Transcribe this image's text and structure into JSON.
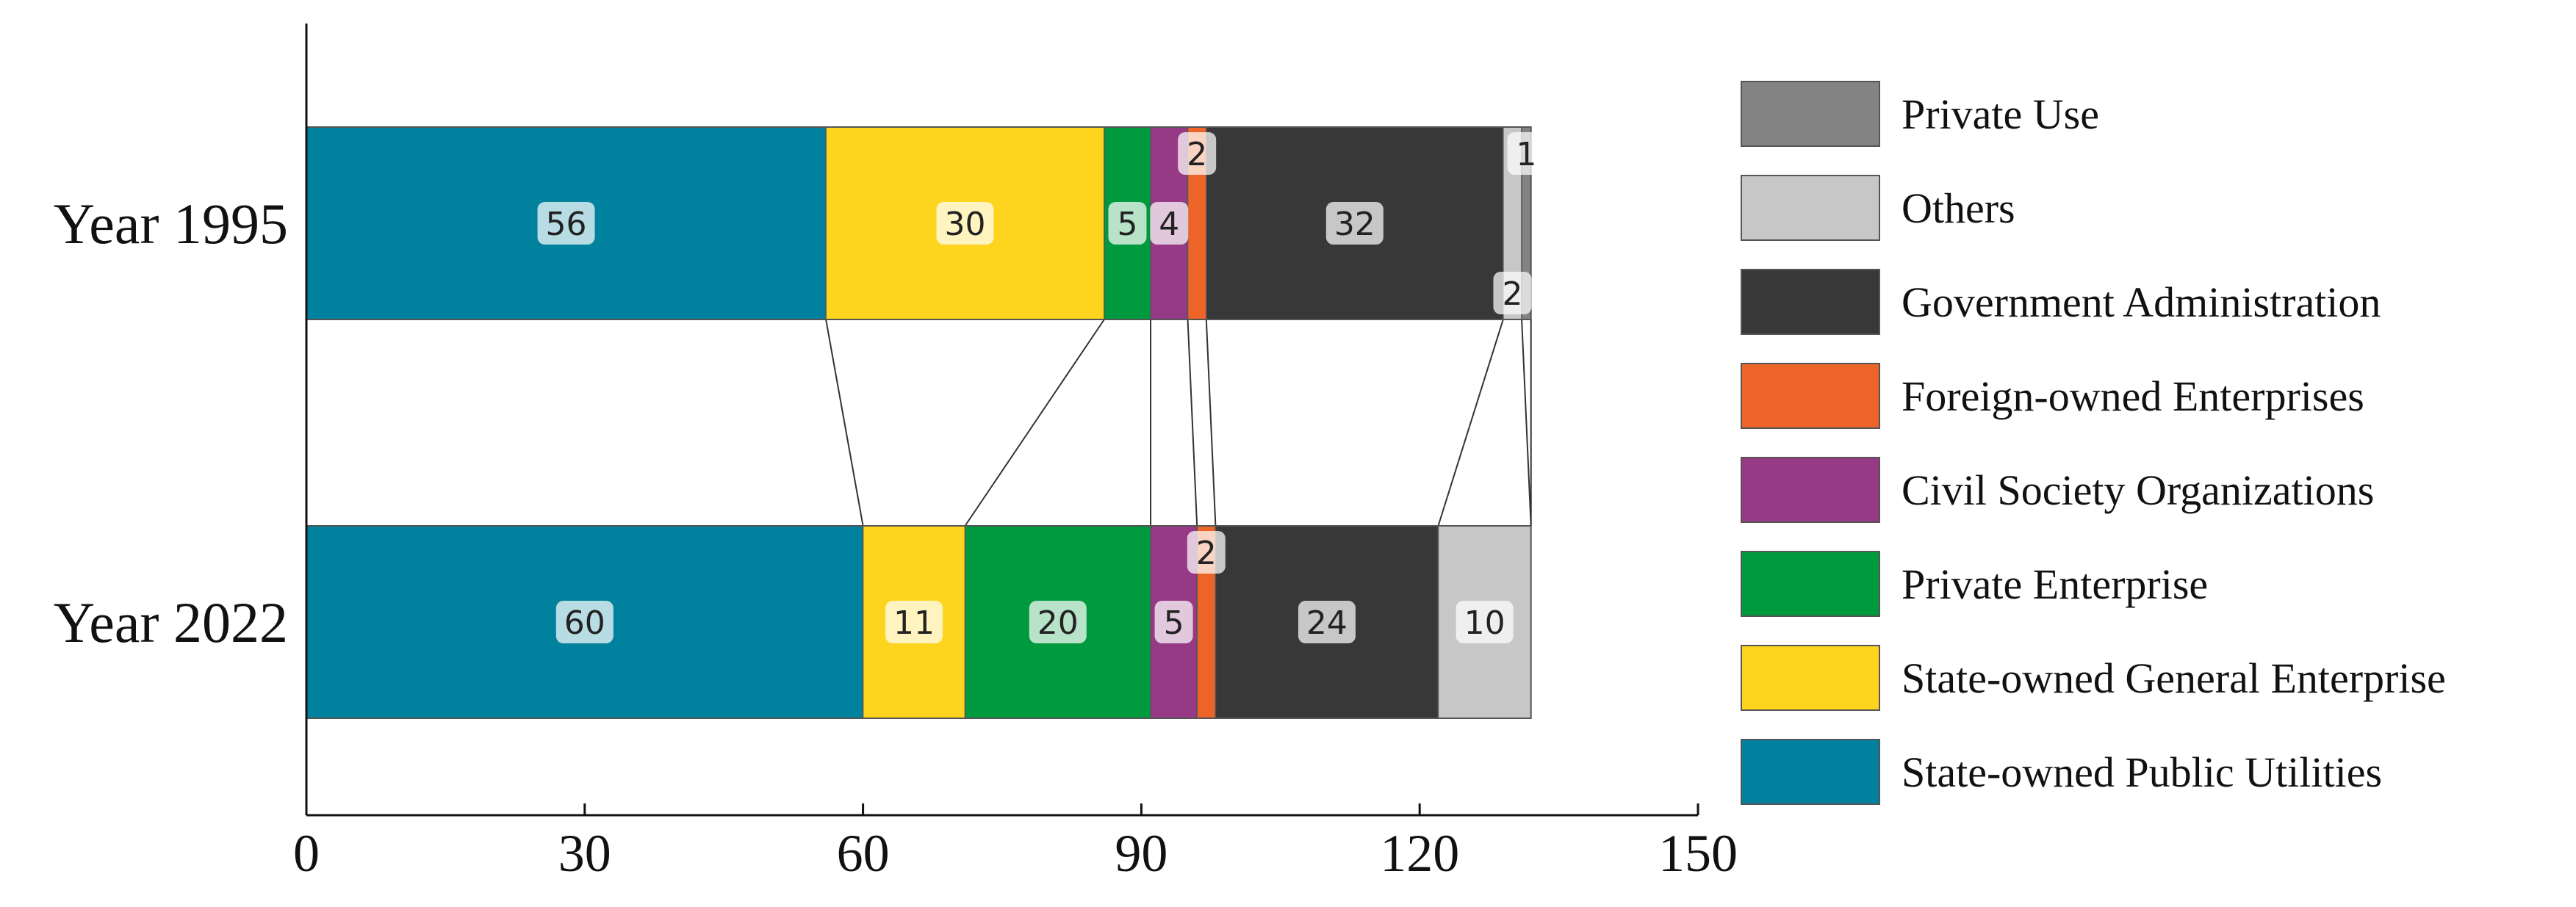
{
  "chart_data": {
    "type": "bar",
    "orientation": "horizontal",
    "stacked": true,
    "categories": [
      "Year 1995",
      "Year 2022"
    ],
    "series": [
      {
        "name": "State-owned Public Utilities",
        "values": [
          56,
          60
        ],
        "color": "#00829e"
      },
      {
        "name": "State-owned General Enterprise",
        "values": [
          30,
          11
        ],
        "color": "#fdd51f"
      },
      {
        "name": "Private Enterprise",
        "values": [
          5,
          20
        ],
        "color": "#009a3e"
      },
      {
        "name": "Civil Society Organizations",
        "values": [
          4,
          5
        ],
        "color": "#963a86"
      },
      {
        "name": "Foreign-owned Enterprises",
        "values": [
          2,
          2
        ],
        "color": "#ec6428"
      },
      {
        "name": "Government Administration",
        "values": [
          32,
          24
        ],
        "color": "#383838"
      },
      {
        "name": "Others",
        "values": [
          2,
          10
        ],
        "color": "#c7c7c7"
      },
      {
        "name": "Private Use",
        "values": [
          1,
          0
        ],
        "color": "#838383"
      }
    ],
    "xlim": [
      0,
      150
    ],
    "xticks": [
      "0",
      "30",
      "60",
      "90",
      "120",
      "150"
    ],
    "title": "",
    "xlabel": "",
    "ylabel": "",
    "grid": false,
    "legend_position": "right"
  }
}
